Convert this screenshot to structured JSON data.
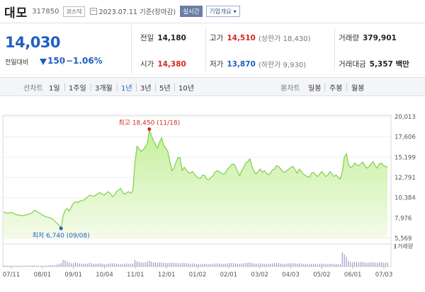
{
  "header": {
    "stock_name": "대모",
    "code": "317850",
    "market": "코스닥",
    "date_text": "2023.07.11  기준(장마감)",
    "realtime_label": "실시간",
    "company_info_label": "기업개요 ▾",
    "calendar_icon": "calendar-icon"
  },
  "price": {
    "current": "14,030",
    "change_label": "전일대비",
    "change": "150",
    "change_rate": "−1.06%",
    "direction_icon": "down-triangle-icon",
    "color": "#1f5fc2"
  },
  "stats": {
    "prev_close": {
      "label": "전일",
      "value": "14,180"
    },
    "high": {
      "label": "고가",
      "value": "14,510",
      "sub": "(상한가 18,430)"
    },
    "volume": {
      "label": "거래량",
      "value": "379,901"
    },
    "open": {
      "label": "시가",
      "value": "14,380"
    },
    "low": {
      "label": "저가",
      "value": "13,870",
      "sub": "(하한가 9,930)"
    },
    "amount": {
      "label": "거래대금",
      "value": "5,357 백만"
    }
  },
  "periods": {
    "line_chart_label": "선차트",
    "line_periods": [
      "1일",
      "1주일",
      "3개월",
      "1년",
      "3년",
      "5년",
      "10년"
    ],
    "selected": "1년",
    "candle_label": "봉차트",
    "candle_periods": [
      "일봉",
      "주봉",
      "월봉"
    ]
  },
  "colors": {
    "up": "#d5271f",
    "down": "#1f5fc2",
    "area_line": "#7ed04a",
    "area_fill": "#c6ef9c"
  },
  "chart_data": {
    "type": "area",
    "y_ticks": [
      "20,013",
      "17,606",
      "15,199",
      "12,791",
      "10,384",
      "7,976",
      "5,569"
    ],
    "ylim": [
      5569,
      20013
    ],
    "x_ticks": [
      "07/11",
      "08/01",
      "09/01",
      "10/04",
      "11/01",
      "12/01",
      "01/02",
      "02/01",
      "03/02",
      "04/03",
      "05/02",
      "06/01",
      "07/03"
    ],
    "max_annotation": "최고 18,450 (11/18)",
    "min_annotation": "최저 6,740 (09/08)",
    "max_value": 18450,
    "min_value": 6740,
    "volume_legend": "거래량",
    "series": [
      {
        "values": [
          8700,
          8600,
          8550,
          8600,
          8650,
          8500,
          8400,
          8350,
          8300,
          8250,
          8300,
          8350,
          8400,
          8500,
          8600,
          8900,
          8800,
          8600,
          8500,
          8300,
          8200,
          8100,
          8050,
          7950,
          7800,
          7600,
          7350,
          7150,
          6740,
          8200,
          8900,
          9100,
          8800,
          9300,
          9700,
          9900,
          9800,
          9950,
          10050,
          10100,
          10300,
          10500,
          10700,
          10600,
          10550,
          10700,
          10900,
          11000,
          10800,
          10700,
          10900,
          11100,
          10900,
          10500,
          10700,
          11100,
          11300,
          11500,
          11000,
          10800,
          11000,
          11100,
          10900,
          11200,
          14500,
          16500,
          16200,
          15900,
          16100,
          16400,
          16800,
          18450,
          17800,
          17200,
          16700,
          16300,
          17000,
          17500,
          16600,
          16300,
          15900,
          14700,
          13600,
          13900,
          14600,
          15200,
          15100,
          13600,
          14000,
          13700,
          13400,
          13300,
          13500,
          13200,
          12900,
          12700,
          12700,
          13100,
          13000,
          12600,
          12500,
          12800,
          13000,
          13400,
          13600,
          13500,
          13300,
          13200,
          13300,
          13800,
          14000,
          14300,
          14400,
          14100,
          13500,
          13000,
          13600,
          14000,
          14500,
          14700,
          15000,
          14100,
          13500,
          13200,
          13500,
          13800,
          13400,
          13600,
          13300,
          13100,
          13300,
          13700,
          13800,
          14200,
          14100,
          13800,
          13500,
          13400,
          13600,
          13800,
          14000,
          14100,
          13700,
          13300,
          13800,
          13500,
          13200,
          13000,
          12900,
          12800,
          13300,
          13400,
          13100,
          12900,
          13200,
          13500,
          13200,
          12900,
          13100,
          13500,
          13200,
          12900,
          13100,
          12800,
          12600,
          13500,
          15200,
          15600,
          14300,
          14000,
          14100,
          14500,
          14300,
          14200,
          14400,
          14600,
          14200,
          13900,
          14100,
          14400,
          14700,
          14200,
          13900,
          14400,
          14500,
          14200,
          14100,
          14030
        ]
      }
    ],
    "volume_values": [
      40,
      35,
      30,
      38,
      33,
      30,
      28,
      32,
      36,
      30,
      28,
      33,
      40,
      45,
      38,
      42,
      35,
      33,
      30,
      28,
      34,
      40,
      45,
      50,
      48,
      60,
      75,
      110,
      140,
      260,
      240,
      190,
      150,
      130,
      120,
      170,
      140,
      120,
      110,
      115,
      105,
      120,
      150,
      130,
      110,
      105,
      115,
      125,
      110,
      105,
      95,
      110,
      125,
      130,
      120,
      110,
      100,
      95,
      105,
      115,
      120,
      105,
      110,
      115,
      260,
      210,
      180,
      160,
      150,
      170,
      190,
      230,
      200,
      170,
      160,
      150,
      165,
      170,
      150,
      140,
      130,
      160,
      150,
      145,
      140,
      130,
      125,
      150,
      140,
      130,
      120,
      115,
      125,
      110,
      105,
      100,
      95,
      105,
      110,
      100,
      95,
      100,
      110,
      120,
      125,
      115,
      110,
      105,
      110,
      125,
      130,
      140,
      135,
      120,
      115,
      110,
      120,
      130,
      140,
      150,
      170,
      140,
      120,
      110,
      115,
      125,
      110,
      115,
      105,
      100,
      110,
      125,
      130,
      140,
      135,
      120,
      110,
      105,
      115,
      125,
      130,
      135,
      120,
      110,
      125,
      115,
      105,
      100,
      95,
      90,
      110,
      115,
      105,
      95,
      110,
      120,
      105,
      95,
      100,
      115,
      105,
      95,
      100,
      95,
      90,
      560,
      480,
      390,
      220,
      180,
      170,
      185,
      175,
      165,
      175,
      185,
      160,
      150,
      155,
      165,
      175,
      155,
      150,
      165,
      170,
      155,
      150,
      160
    ]
  }
}
